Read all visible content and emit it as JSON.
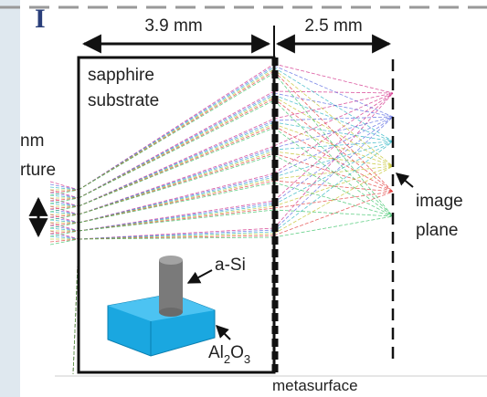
{
  "panel_label": "I",
  "dimensions": {
    "substrate": "3.9 mm",
    "gap": "2.5 mm"
  },
  "labels": {
    "substrate_line1": "sapphire",
    "substrate_line2": "substrate",
    "aperture_line1": "nm",
    "aperture_line2": "rture",
    "pillar": "a-Si",
    "base_main": "Al",
    "base_sub1": "2",
    "base_mid": "O",
    "base_sub2": "3",
    "image_line1": "image",
    "image_line2": "plane",
    "metasurface": "metasurface"
  }
}
